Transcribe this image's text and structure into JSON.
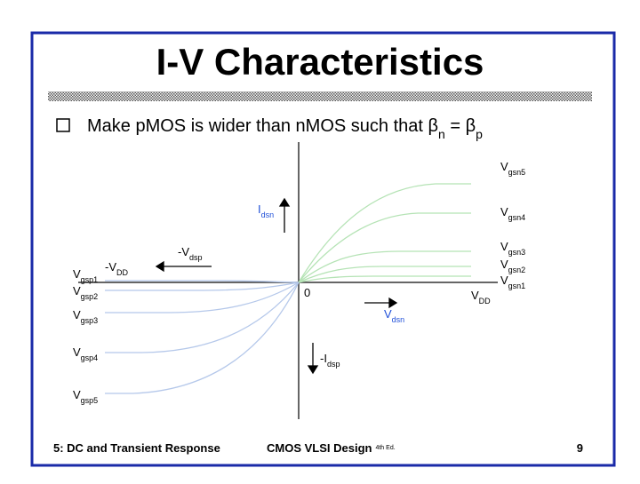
{
  "title": "I-V Characteristics",
  "bullet": [
    "Make pMOS is wider than nMOS such that β",
    "n",
    " = β",
    "p"
  ],
  "diagram": {
    "vgsn5": [
      "V",
      "gsn5"
    ],
    "vgsn4": [
      "V",
      "gsn4"
    ],
    "vgsn3": [
      "V",
      "gsn3"
    ],
    "vgsn2": [
      "V",
      "gsn2"
    ],
    "vgsn1": [
      "V",
      "gsn1"
    ],
    "vdd": [
      "V",
      "DD"
    ],
    "origin": "0",
    "vdsn": [
      "V",
      "dsn"
    ],
    "idsn": [
      "I",
      "dsn"
    ],
    "idsp": [
      "-I",
      "dsp"
    ],
    "vdsp": [
      "-V",
      "dsp"
    ],
    "neg_vdd": [
      "-V",
      "DD"
    ],
    "vgsp1": [
      "V",
      "gsp1"
    ],
    "vgsp2": [
      "V",
      "gsp2"
    ],
    "vgsp3": [
      "V",
      "gsp3"
    ],
    "vgsp4": [
      "V",
      "gsp4"
    ],
    "vgsp5": [
      "V",
      "gsp5"
    ]
  },
  "footer": {
    "left": "5: DC and Transient Response",
    "center": "CMOS VLSI Design",
    "edition": "4th Ed.",
    "page": "9"
  }
}
